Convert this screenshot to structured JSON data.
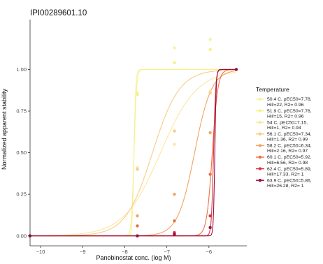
{
  "chart_data": {
    "type": "scatter",
    "title": "IPI00289601.10",
    "xlabel": "Panobinostat conc. (log M)",
    "ylabel": "Normalized apparent stability",
    "xlim": [
      -10.25,
      -5.1
    ],
    "ylim": [
      -0.06,
      1.3
    ],
    "x_ticks": [
      -10,
      -9,
      -8,
      -7,
      -6
    ],
    "x_tick_labels": [
      "−10",
      "−9",
      "−8",
      "−7",
      "−6"
    ],
    "y_ticks": [
      0.0,
      0.25,
      0.5,
      0.75,
      1.0
    ],
    "y_tick_labels": [
      "0.00",
      "0.25",
      "0.50",
      "0.75",
      "1.00"
    ],
    "grid": false,
    "legend": {
      "title": "Temperature",
      "position": "right"
    },
    "series": [
      {
        "name": "50.4 C, pEC50=7.78,\nHill=22, R2= 0.96",
        "color": "#f6f2a4",
        "pec50": 7.78,
        "hill": 22,
        "points": [
          [
            -10.25,
            0.0
          ],
          [
            -7.7,
            0.86
          ],
          [
            -6.82,
            1.13
          ],
          [
            -5.97,
            1.18
          ]
        ]
      },
      {
        "name": "51.9 C, pEC50=7.78,\nHill=15, R2= 0.96",
        "color": "#f7f08a",
        "pec50": 7.78,
        "hill": 15,
        "points": [
          [
            -10.25,
            0.0
          ],
          [
            -7.7,
            0.85
          ],
          [
            -6.82,
            1.04
          ],
          [
            -5.97,
            1.12
          ]
        ]
      },
      {
        "name": "54 C, pEC50=7.15,\nHill=1, R2= 0.94",
        "color": "#fbe7a0",
        "pec50": 7.15,
        "hill": 1,
        "points": [
          [
            -10.25,
            0.0
          ],
          [
            -7.7,
            0.41
          ],
          [
            -6.82,
            0.55
          ],
          [
            -5.97,
            0.87
          ]
        ]
      },
      {
        "name": "56.1 C, pEC50=7.34,\nHill=1.36, R2= 0.99",
        "color": "#f9cc86",
        "pec50": 7.34,
        "hill": 1.36,
        "points": [
          [
            -10.25,
            0.0
          ],
          [
            -7.7,
            0.4
          ],
          [
            -6.82,
            0.63
          ],
          [
            -5.97,
            0.86
          ]
        ]
      },
      {
        "name": "58.2 C, pEC50=6.34,\nHill=2.16, R2= 0.97",
        "color": "#f4a460",
        "pec50": 6.34,
        "hill": 2.16,
        "points": [
          [
            -10.25,
            0.0
          ],
          [
            -7.7,
            0.12
          ],
          [
            -6.82,
            0.25
          ],
          [
            -5.97,
            0.62
          ]
        ]
      },
      {
        "name": "60.1 C, pEC50=5.92,\nHill=6.56, R2= 0.98",
        "color": "#ee7040",
        "pec50": 5.92,
        "hill": 6.56,
        "points": [
          [
            -10.25,
            0.0
          ],
          [
            -7.7,
            0.06
          ],
          [
            -6.82,
            0.09
          ],
          [
            -5.97,
            0.37
          ]
        ]
      },
      {
        "name": "62.4 C, pEC50=5.89,\nHill=17.33, R2= 1",
        "color": "#d9363e",
        "pec50": 5.89,
        "hill": 17.33,
        "points": [
          [
            -10.25,
            0.0
          ],
          [
            -7.7,
            0.0
          ],
          [
            -6.82,
            0.02
          ],
          [
            -5.97,
            0.12
          ]
        ]
      },
      {
        "name": "63.9 C, pEC50=5.86,\nHill=26.28, R2= 1",
        "color": "#9a0c3c",
        "pec50": 5.86,
        "hill": 26.28,
        "points": [
          [
            -10.25,
            0.0
          ],
          [
            -7.7,
            0.0
          ],
          [
            -6.82,
            0.01
          ],
          [
            -5.97,
            0.05
          ],
          [
            -5.35,
            1.0
          ]
        ]
      }
    ]
  }
}
